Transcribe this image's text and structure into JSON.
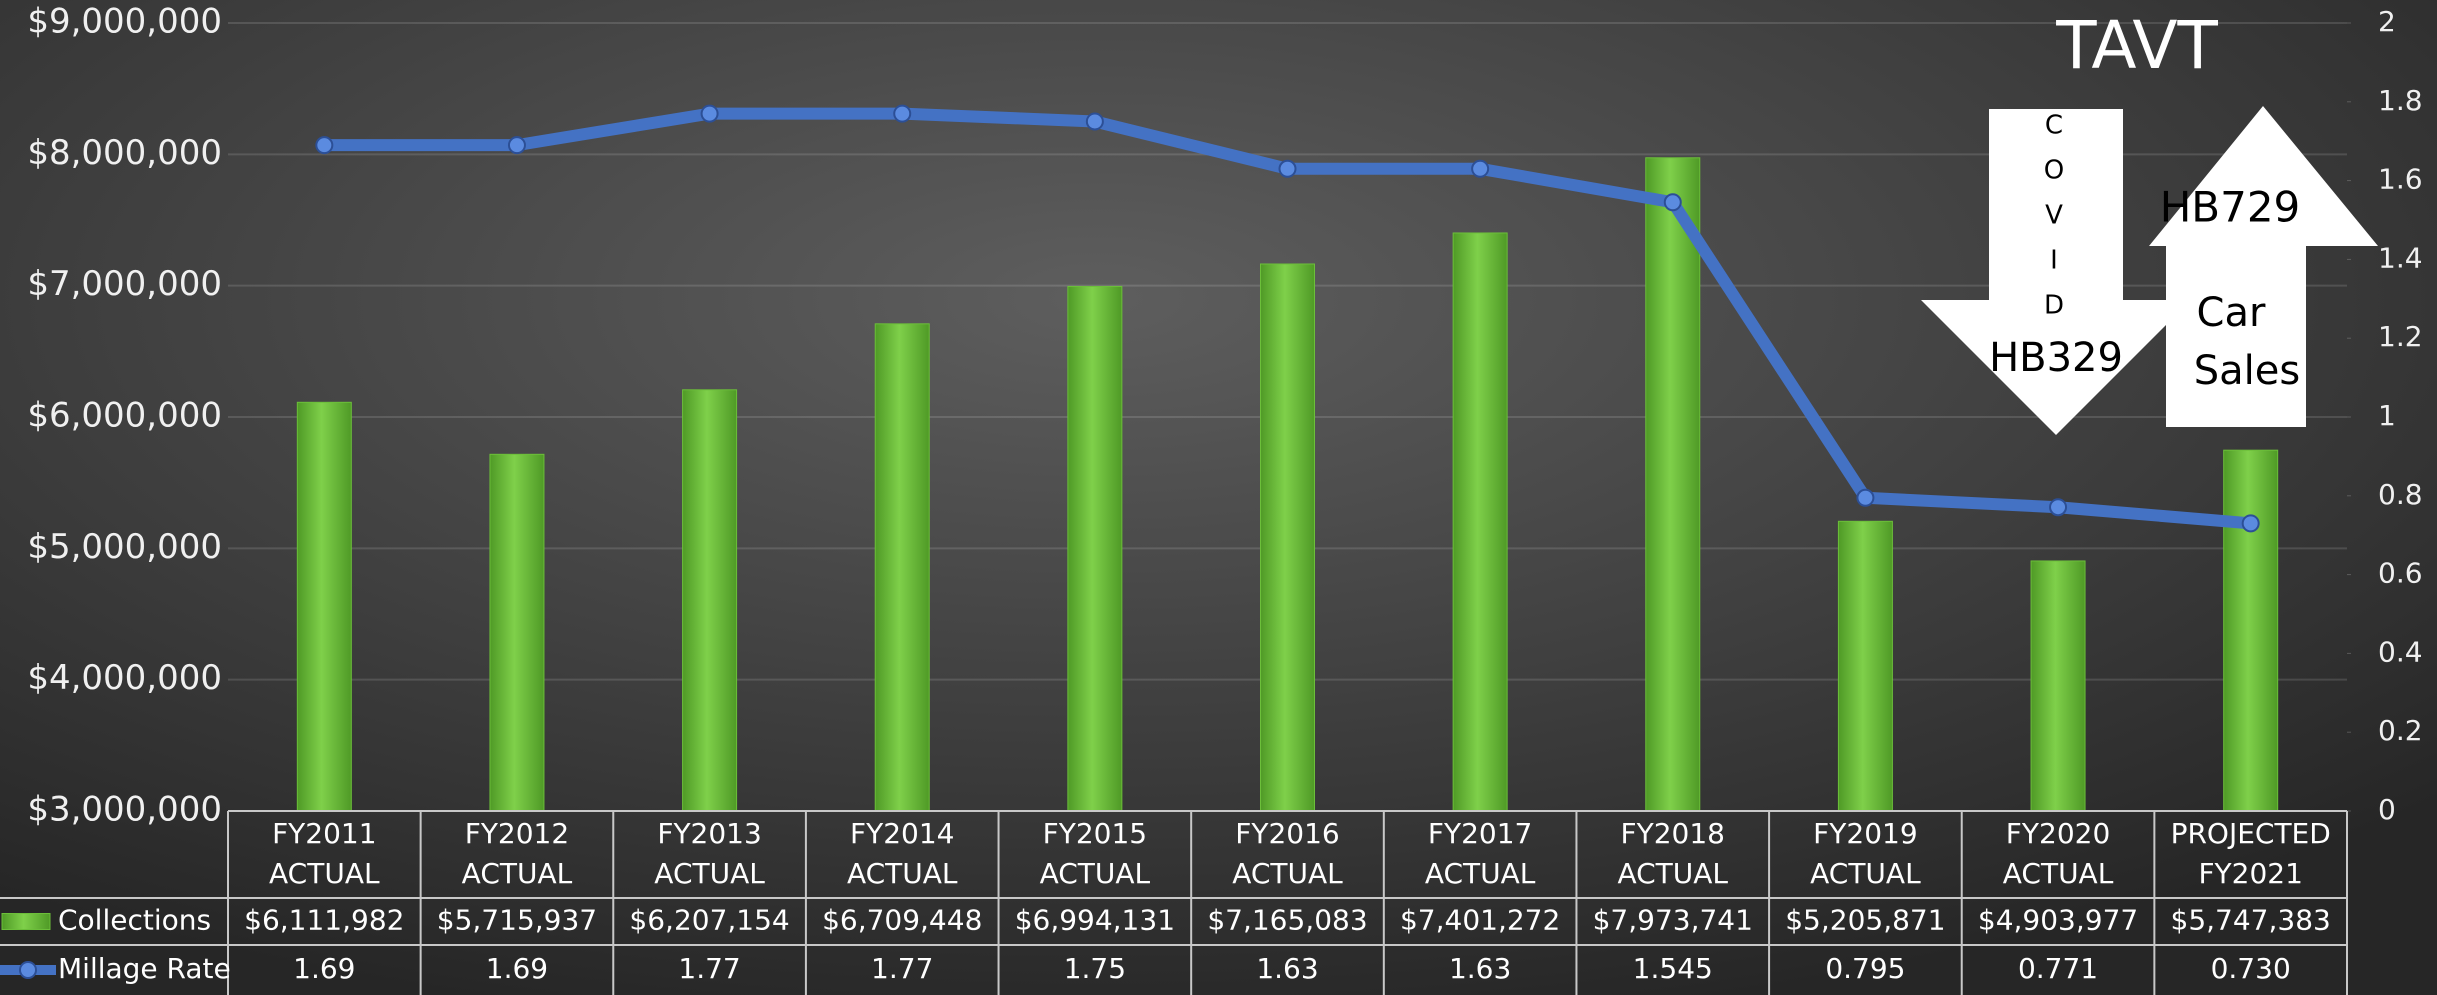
{
  "chart_data": {
    "type": "bar_line",
    "categories": [
      [
        "FY2011",
        "ACTUAL"
      ],
      [
        "FY2012",
        "ACTUAL"
      ],
      [
        "FY2013",
        "ACTUAL"
      ],
      [
        "FY2014",
        "ACTUAL"
      ],
      [
        "FY2015",
        "ACTUAL"
      ],
      [
        "FY2016",
        "ACTUAL"
      ],
      [
        "FY2017",
        "ACTUAL"
      ],
      [
        "FY2018",
        "ACTUAL"
      ],
      [
        "FY2019",
        "ACTUAL"
      ],
      [
        "FY2020",
        "ACTUAL"
      ],
      [
        "PROJECTED",
        "FY2021"
      ]
    ],
    "series": [
      {
        "name": "Collections",
        "color": "#6cbf3a",
        "type": "bar",
        "values": [
          6111982,
          5715937,
          6207154,
          6709448,
          6994131,
          7165083,
          7401272,
          7973741,
          5205871,
          4903977,
          5747383
        ],
        "value_labels": [
          "$6,111,982",
          "$5,715,937",
          "$6,207,154",
          "$6,709,448",
          "$6,994,131",
          "$7,165,083",
          "$7,401,272",
          "$7,973,741",
          "$5,205,871",
          "$4,903,977",
          "$5,747,383"
        ]
      },
      {
        "name": "Millage Rate",
        "color": "#4472c4",
        "type": "line",
        "axis": "y2",
        "values": [
          1.69,
          1.69,
          1.77,
          1.77,
          1.75,
          1.63,
          1.63,
          1.545,
          0.795,
          0.771,
          0.73
        ],
        "value_labels": [
          "1.69",
          "1.69",
          "1.77",
          "1.77",
          "1.75",
          "1.63",
          "1.63",
          "1.545",
          "0.795",
          "0.771",
          "0.730"
        ]
      }
    ],
    "ylim": [
      3000000,
      9000000
    ],
    "yticks": [
      {
        "value": 3000000,
        "label": "$3,000,000"
      },
      {
        "value": 4000000,
        "label": "$4,000,000"
      },
      {
        "value": 5000000,
        "label": "$5,000,000"
      },
      {
        "value": 6000000,
        "label": "$6,000,000"
      },
      {
        "value": 7000000,
        "label": "$7,000,000"
      },
      {
        "value": 8000000,
        "label": "$8,000,000"
      },
      {
        "value": 9000000,
        "label": "$9,000,000"
      }
    ],
    "y2lim": [
      0,
      2
    ],
    "y2ticks": [
      0,
      0.2,
      0.4,
      0.6,
      0.8,
      1,
      1.2,
      1.4,
      1.6,
      1.8,
      2
    ],
    "grid": true,
    "annotations": {
      "title": "TAVT",
      "down_arrow": {
        "letters": [
          "C",
          "O",
          "V",
          "I",
          "D"
        ],
        "label": "HB329"
      },
      "up_arrow": {
        "label": "HB729",
        "lines": [
          "Car",
          "Sales"
        ]
      }
    }
  }
}
